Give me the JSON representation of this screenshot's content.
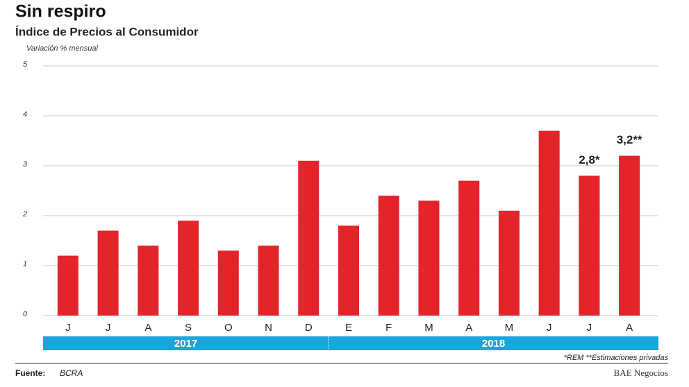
{
  "chart_data": {
    "type": "bar",
    "title": "Sin respiro",
    "subtitle": "Índice de Precios al Consumidor",
    "y_label": "Variación % mensual",
    "categories": [
      "J",
      "J",
      "A",
      "S",
      "O",
      "N",
      "D",
      "E",
      "F",
      "M",
      "A",
      "M",
      "J",
      "J",
      "A"
    ],
    "values": [
      1.2,
      1.7,
      1.4,
      1.9,
      1.3,
      1.4,
      3.1,
      1.8,
      2.4,
      2.3,
      2.7,
      2.1,
      3.7,
      2.8,
      3.2
    ],
    "value_labels": [
      null,
      null,
      null,
      null,
      null,
      null,
      null,
      null,
      null,
      null,
      null,
      null,
      null,
      "2,8*",
      "3,2**"
    ],
    "color": "#e3242b",
    "ylim": [
      0,
      5
    ],
    "yticks": [
      0,
      1,
      2,
      3,
      4,
      5
    ],
    "grid": true,
    "year_groups": [
      {
        "label": "2017",
        "count": 7
      },
      {
        "label": "2018",
        "count": 8
      }
    ],
    "year_color": "#1aa5db",
    "footnote": "*REM  **Estimaciones privadas",
    "source_label": "Fuente:",
    "source": "BCRA",
    "credit": "BAE Negocios"
  }
}
